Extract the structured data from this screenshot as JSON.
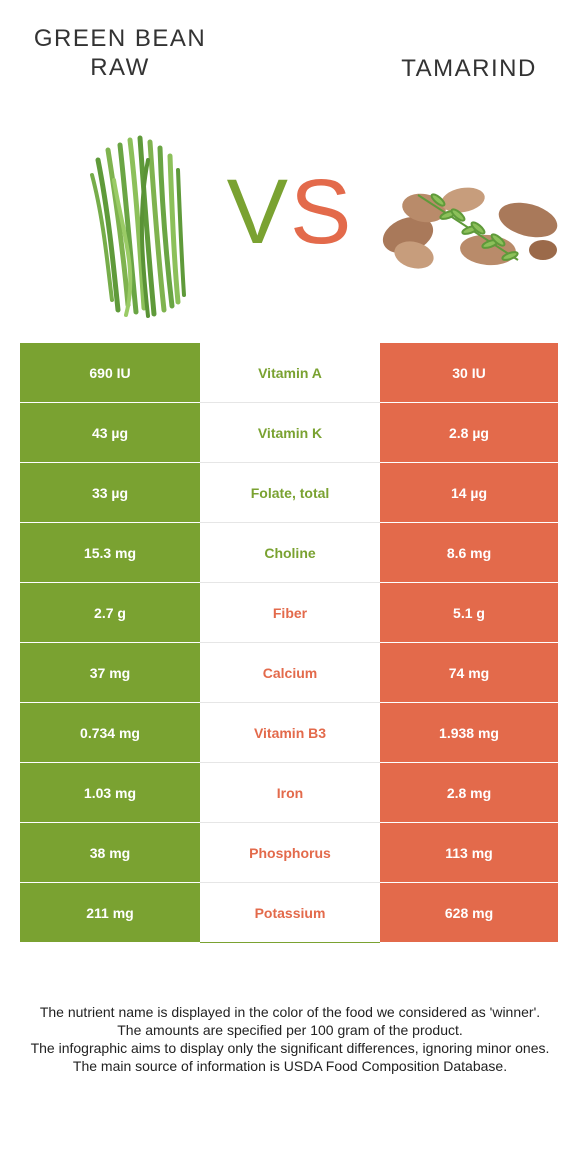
{
  "left_food": {
    "title_line1": "GREEN BEAN",
    "title_line2": "RAW",
    "color": "#7aa231"
  },
  "right_food": {
    "title": "TAMARIND",
    "color": "#e36a4b"
  },
  "vs": {
    "v": "V",
    "s": "S"
  },
  "rows": [
    {
      "name": "Vitamin A",
      "left": "690 IU",
      "right": "30 IU",
      "winner": "left"
    },
    {
      "name": "Vitamin K",
      "left": "43 µg",
      "right": "2.8 µg",
      "winner": "left"
    },
    {
      "name": "Folate, total",
      "left": "33 µg",
      "right": "14 µg",
      "winner": "left"
    },
    {
      "name": "Choline",
      "left": "15.3 mg",
      "right": "8.6 mg",
      "winner": "left"
    },
    {
      "name": "Fiber",
      "left": "2.7 g",
      "right": "5.1 g",
      "winner": "right"
    },
    {
      "name": "Calcium",
      "left": "37 mg",
      "right": "74 mg",
      "winner": "right"
    },
    {
      "name": "Vitamin B3",
      "left": "0.734 mg",
      "right": "1.938 mg",
      "winner": "right"
    },
    {
      "name": "Iron",
      "left": "1.03 mg",
      "right": "2.8 mg",
      "winner": "right"
    },
    {
      "name": "Phosphorus",
      "left": "38 mg",
      "right": "113 mg",
      "winner": "right"
    },
    {
      "name": "Potassium",
      "left": "211 mg",
      "right": "628 mg",
      "winner": "right"
    }
  ],
  "footer": [
    "The nutrient name is displayed in the color of the food we considered as 'winner'.",
    "The amounts are specified per 100 gram of the product.",
    "The infographic aims to display only the significant differences, ignoring minor ones.",
    "The main source of information is USDA Food Composition Database."
  ]
}
